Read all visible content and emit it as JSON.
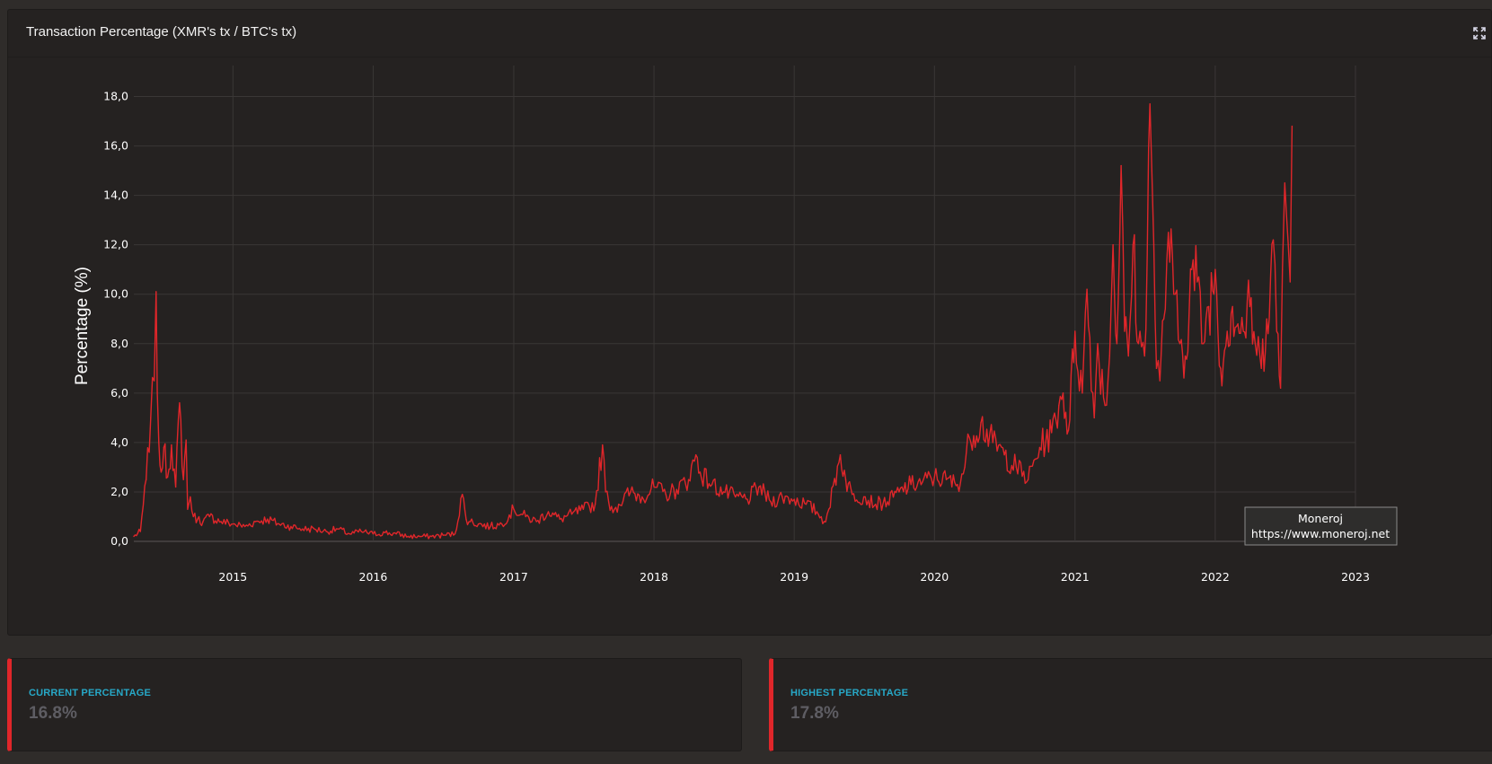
{
  "header": {
    "title": "Transaction Percentage (XMR's tx / BTC's tx)"
  },
  "icons": {
    "expand": "expand-icon"
  },
  "colors": {
    "line": "#e0262a",
    "accent": "#e0262a",
    "label": "#27a8c7"
  },
  "stats": [
    {
      "label": "CURRENT PERCENTAGE",
      "value": "16.8%"
    },
    {
      "label": "HIGHEST PERCENTAGE",
      "value": "17.8%"
    }
  ],
  "watermark": {
    "line1": "Moneroj",
    "line2": "https://www.moneroj.net"
  },
  "chart_data": {
    "type": "line",
    "ylabel": "Percentage (%)",
    "xlabel": "",
    "xlim": [
      "2014-04-18",
      "2023-01-01"
    ],
    "ylim": [
      0,
      18.6
    ],
    "yticks": [
      "0,0",
      "2,0",
      "4,0",
      "6,0",
      "8,0",
      "10,0",
      "12,0",
      "14,0",
      "16,0",
      "18,0"
    ],
    "xticks": [
      "2015",
      "2016",
      "2017",
      "2018",
      "2019",
      "2020",
      "2021",
      "2022",
      "2023"
    ],
    "grid": true,
    "series": [
      {
        "color": "#e0262a",
        "x": [
          "2014-04-18",
          "2014-05-05",
          "2014-05-20",
          "2014-06-01",
          "2014-06-10",
          "2014-06-15",
          "2014-06-18",
          "2014-06-22",
          "2014-06-28",
          "2014-07-05",
          "2014-07-15",
          "2014-07-25",
          "2014-08-05",
          "2014-08-15",
          "2014-08-25",
          "2014-09-01",
          "2014-09-05",
          "2014-09-12",
          "2014-09-20",
          "2014-10-01",
          "2014-10-15",
          "2014-11-01",
          "2014-12-01",
          "2015-01-01",
          "2015-02-01",
          "2015-03-01",
          "2015-04-01",
          "2015-05-01",
          "2015-06-01",
          "2015-07-01",
          "2015-08-01",
          "2015-09-01",
          "2015-10-01",
          "2015-11-01",
          "2015-12-01",
          "2016-01-01",
          "2016-02-01",
          "2016-03-01",
          "2016-04-01",
          "2016-05-01",
          "2016-06-01",
          "2016-07-01",
          "2016-08-01",
          "2016-08-20",
          "2016-08-30",
          "2016-09-10",
          "2016-10-01",
          "2016-11-01",
          "2016-12-01",
          "2017-01-01",
          "2017-02-01",
          "2017-03-01",
          "2017-04-01",
          "2017-05-01",
          "2017-06-01",
          "2017-07-01",
          "2017-08-01",
          "2017-08-20",
          "2017-08-28",
          "2017-09-05",
          "2017-09-20",
          "2017-10-01",
          "2017-11-01",
          "2017-12-01",
          "2018-01-01",
          "2018-02-01",
          "2018-03-01",
          "2018-04-01",
          "2018-04-20",
          "2018-05-01",
          "2018-06-01",
          "2018-07-01",
          "2018-08-01",
          "2018-09-01",
          "2018-10-01",
          "2018-11-01",
          "2018-12-01",
          "2019-01-01",
          "2019-02-01",
          "2019-03-01",
          "2019-03-20",
          "2019-04-01",
          "2019-05-01",
          "2019-05-15",
          "2019-06-01",
          "2019-07-01",
          "2019-08-01",
          "2019-09-01",
          "2019-10-01",
          "2019-11-01",
          "2019-12-01",
          "2020-01-01",
          "2020-02-01",
          "2020-03-01",
          "2020-03-20",
          "2020-04-01",
          "2020-05-01",
          "2020-06-01",
          "2020-07-01",
          "2020-08-01",
          "2020-09-01",
          "2020-10-01",
          "2020-11-01",
          "2020-11-20",
          "2020-12-01",
          "2020-12-15",
          "2021-01-01",
          "2021-01-20",
          "2021-02-01",
          "2021-02-20",
          "2021-03-01",
          "2021-03-20",
          "2021-04-01",
          "2021-04-10",
          "2021-04-20",
          "2021-05-01",
          "2021-05-10",
          "2021-05-20",
          "2021-06-01",
          "2021-06-15",
          "2021-07-01",
          "2021-07-15",
          "2021-07-20",
          "2021-07-25",
          "2021-08-01",
          "2021-08-10",
          "2021-08-20",
          "2021-09-01",
          "2021-09-15",
          "2021-10-01",
          "2021-10-15",
          "2021-11-01",
          "2021-11-15",
          "2021-12-01",
          "2021-12-15",
          "2022-01-01",
          "2022-01-15",
          "2022-02-01",
          "2022-02-15",
          "2022-03-01",
          "2022-03-15",
          "2022-04-01",
          "2022-04-15",
          "2022-05-01",
          "2022-05-15",
          "2022-06-01",
          "2022-06-10",
          "2022-06-20",
          "2022-06-25",
          "2022-07-01",
          "2022-07-10",
          "2022-07-15",
          "2022-07-20"
        ],
        "y": [
          0.2,
          0.4,
          2.5,
          5.0,
          6.5,
          10.1,
          6.0,
          4.0,
          2.8,
          3.8,
          2.6,
          3.9,
          2.2,
          5.6,
          2.5,
          4.1,
          1.3,
          1.8,
          1.0,
          0.9,
          0.8,
          1.0,
          0.8,
          0.7,
          0.6,
          0.8,
          0.9,
          0.7,
          0.6,
          0.5,
          0.5,
          0.4,
          0.5,
          0.3,
          0.4,
          0.3,
          0.35,
          0.3,
          0.2,
          0.2,
          0.2,
          0.25,
          0.3,
          1.9,
          0.9,
          0.8,
          0.7,
          0.6,
          0.7,
          1.3,
          1.0,
          0.8,
          1.2,
          0.9,
          1.1,
          1.3,
          1.5,
          3.9,
          2.0,
          1.6,
          1.3,
          1.5,
          2.0,
          1.8,
          2.2,
          1.9,
          2.1,
          2.5,
          3.5,
          2.8,
          2.3,
          2.0,
          1.8,
          1.7,
          2.2,
          1.6,
          1.8,
          1.7,
          1.5,
          1.2,
          0.8,
          1.3,
          3.5,
          2.5,
          1.9,
          1.8,
          1.5,
          1.6,
          2.0,
          2.3,
          2.4,
          2.6,
          2.5,
          2.3,
          3.0,
          4.2,
          4.8,
          4.0,
          3.5,
          3.0,
          2.5,
          3.8,
          4.4,
          5.5,
          6.0,
          4.5,
          8.5,
          6.0,
          10.2,
          5.0,
          8.0,
          5.5,
          7.5,
          12.0,
          8.0,
          15.2,
          8.5,
          7.5,
          12.0,
          8.0,
          7.5,
          17.7,
          15.0,
          12.0,
          7.0,
          6.5,
          9.0,
          12.5,
          10.0,
          8.0,
          7.5,
          11.0,
          10.5,
          8.0,
          9.5,
          11.0,
          7.0,
          8.5,
          9.5,
          8.8,
          8.5,
          9.5,
          8.0,
          7.0,
          9.0,
          12.2,
          8.5,
          6.2,
          11.0,
          14.5,
          12.0,
          10.5,
          16.8
        ]
      }
    ]
  }
}
